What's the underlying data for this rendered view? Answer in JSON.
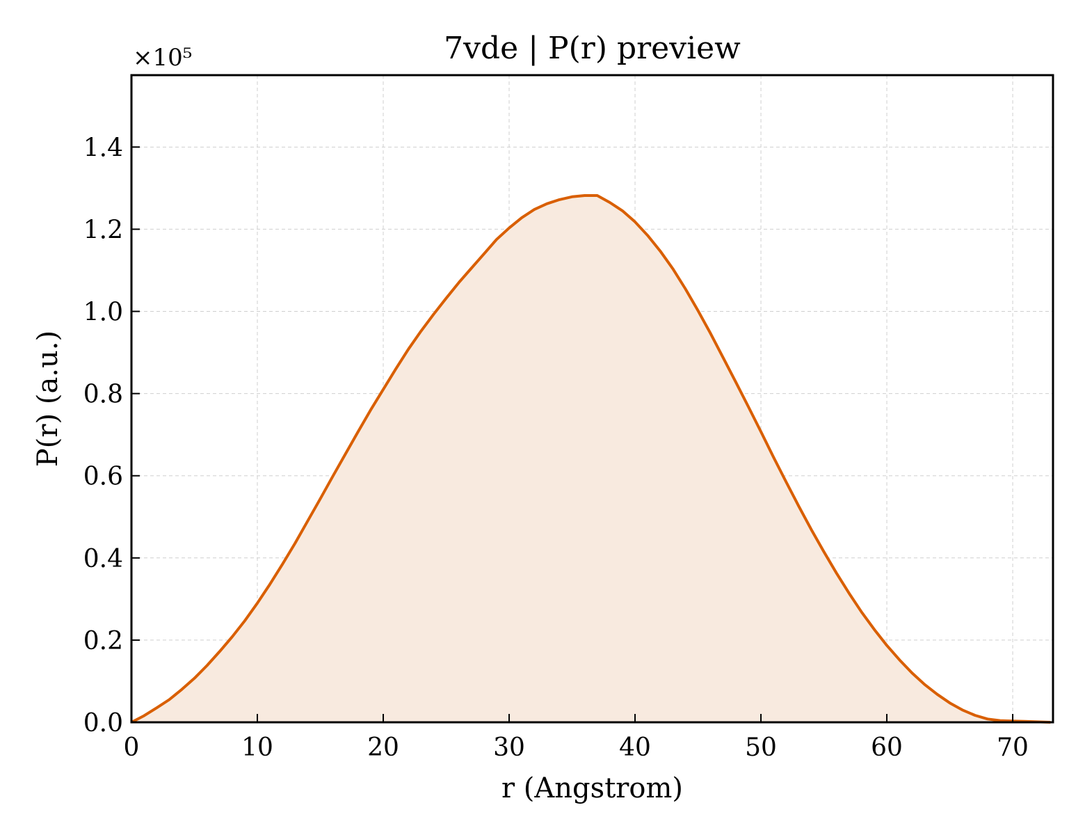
{
  "chart_data": {
    "type": "area",
    "title": "7vde | P(r) preview",
    "xlabel": "r (Angstrom)",
    "ylabel": "P(r) (a.u.)",
    "y_multiplier_label": "×10⁵",
    "xlim": [
      0,
      73.2
    ],
    "ylim": [
      0,
      1.575
    ],
    "xticks": [
      0,
      10,
      20,
      30,
      40,
      50,
      60,
      70
    ],
    "xtick_labels": [
      "0",
      "10",
      "20",
      "30",
      "40",
      "50",
      "60",
      "70"
    ],
    "yticks": [
      0.0,
      0.2,
      0.4,
      0.6,
      0.8,
      1.0,
      1.2,
      1.4
    ],
    "ytick_labels": [
      "0.0",
      "0.2",
      "0.4",
      "0.6",
      "0.8",
      "1.0",
      "1.2",
      "1.4"
    ],
    "grid": true,
    "colors": {
      "line": "#d95f02",
      "fill": "#f8eadf"
    },
    "series": [
      {
        "x": [
          0,
          1,
          2,
          3,
          4,
          5,
          6,
          7,
          8,
          9,
          10,
          11,
          12,
          13,
          14,
          15,
          16,
          17,
          18,
          19,
          20,
          21,
          22,
          23,
          24,
          25,
          26,
          27,
          28,
          29,
          30,
          31,
          32,
          33,
          34,
          35,
          36,
          37,
          38,
          39,
          40,
          41,
          42,
          43,
          44,
          45,
          46,
          47,
          48,
          49,
          50,
          51,
          52,
          53,
          54,
          55,
          56,
          57,
          58,
          59,
          60,
          61,
          62,
          63,
          64,
          65,
          66,
          67,
          68,
          69,
          70,
          71,
          72,
          73
        ],
        "y": [
          0.0,
          0.016,
          0.035,
          0.055,
          0.08,
          0.107,
          0.138,
          0.172,
          0.208,
          0.247,
          0.29,
          0.336,
          0.385,
          0.436,
          0.49,
          0.544,
          0.599,
          0.653,
          0.707,
          0.76,
          0.81,
          0.86,
          0.908,
          0.952,
          0.993,
          1.032,
          1.07,
          1.105,
          1.14,
          1.175,
          1.203,
          1.228,
          1.248,
          1.262,
          1.272,
          1.279,
          1.282,
          1.282,
          1.265,
          1.245,
          1.218,
          1.185,
          1.147,
          1.104,
          1.055,
          1.002,
          0.946,
          0.887,
          0.828,
          0.768,
          0.707,
          0.645,
          0.585,
          0.526,
          0.469,
          0.415,
          0.363,
          0.314,
          0.268,
          0.226,
          0.187,
          0.152,
          0.12,
          0.092,
          0.068,
          0.047,
          0.03,
          0.017,
          0.008,
          0.004,
          0.003,
          0.002,
          0.001,
          0.0
        ]
      }
    ]
  }
}
